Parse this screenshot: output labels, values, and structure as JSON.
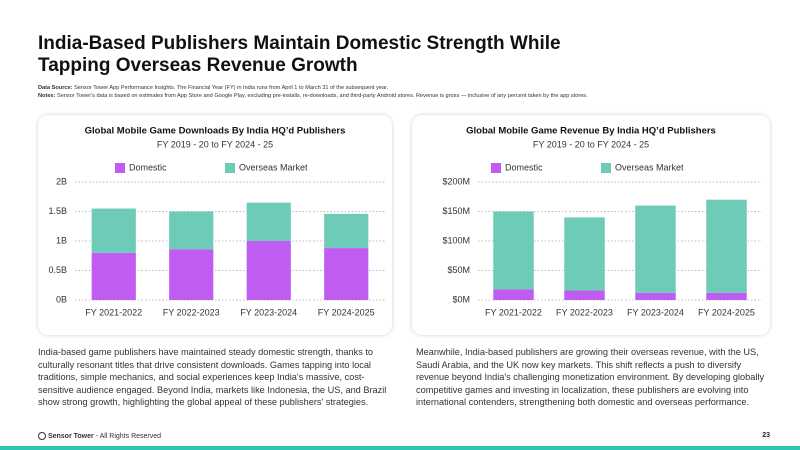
{
  "page": {
    "title": "India-Based Publishers Maintain Domestic Strength While Tapping Overseas Revenue Growth",
    "source_label": "Data Source:",
    "source": "Sensor Tower App Performance Insights. The Financial Year (FY) in India runs from April 1 to March 31 of the subsequent year.",
    "notes_label": "Notes:",
    "notes": "Sensor Tower's data is based on estimates from App Store and Google Play, excluding pre-installs, re-downloads, and third-party Android stores. Revenue is gross — inclusive of any percent taken by the app stores.",
    "paragraphs": [
      "India-based game publishers have maintained steady domestic strength, thanks to culturally resonant titles that drive consistent downloads. Games tapping into local traditions, simple mechanics, and social experiences keep India's massive, cost-sensitive audience engaged. Beyond India, markets like Indonesia, the US, and Brazil show strong growth, highlighting the global appeal of these publishers' strategies.",
      "Meanwhile, India-based publishers are growing their overseas revenue, with the US, Saudi Arabia, and the UK now key markets. This shift reflects a push to diversify revenue beyond India's challenging monetization environment. By developing globally competitive games and investing in localization, these publishers are evolving into international contenders, strengthening both domestic and overseas performance."
    ],
    "footer": {
      "brand": "Sensor Tower",
      "rights": "- All Rights Reserved",
      "page_number": "23"
    }
  },
  "chart_data": [
    {
      "type": "bar",
      "stacked": true,
      "grid": true,
      "legend": "top",
      "title": "Global Mobile Game Downloads By India HQ’d Publishers",
      "subtitle": "FY 2019 - 20 to FY 2024 - 25",
      "categories": [
        "FY 2021-2022",
        "FY 2022-2023",
        "FY 2023-2024",
        "FY 2024-2025"
      ],
      "series": [
        {
          "name": "Domestic",
          "color": "#c05cf2",
          "values": [
            0.8,
            0.86,
            1.0,
            0.88
          ]
        },
        {
          "name": "Overseas Market",
          "color": "#6dcbb8",
          "values": [
            0.75,
            0.64,
            0.65,
            0.58
          ]
        }
      ],
      "ylim": [
        0,
        2
      ],
      "yticks": [
        {
          "value": 0,
          "label": "0B"
        },
        {
          "value": 0.5,
          "label": "0.5B"
        },
        {
          "value": 1,
          "label": "1B"
        },
        {
          "value": 1.5,
          "label": "1.5B"
        },
        {
          "value": 2,
          "label": "2B"
        }
      ]
    },
    {
      "type": "bar",
      "stacked": true,
      "grid": true,
      "legend": "top",
      "title": "Global Mobile Game Revenue By India HQ’d Publishers",
      "subtitle": "FY 2019 - 20 to FY 2024 - 25",
      "categories": [
        "FY 2021-2022",
        "FY 2022-2023",
        "FY 2023-2024",
        "FY 2024-2025"
      ],
      "series": [
        {
          "name": "Domestic",
          "color": "#c05cf2",
          "values": [
            18,
            16,
            12,
            12
          ]
        },
        {
          "name": "Overseas Market",
          "color": "#6dcbb8",
          "values": [
            132,
            124,
            148,
            158
          ]
        }
      ],
      "ylim": [
        0,
        200
      ],
      "yticks": [
        {
          "value": 0,
          "label": "$0M"
        },
        {
          "value": 50,
          "label": "$50M"
        },
        {
          "value": 100,
          "label": "$100M"
        },
        {
          "value": 150,
          "label": "$150M"
        },
        {
          "value": 200,
          "label": "$200M"
        }
      ]
    }
  ]
}
